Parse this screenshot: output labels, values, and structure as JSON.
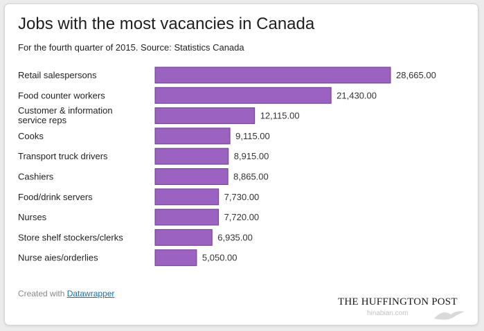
{
  "chart_data": {
    "type": "bar",
    "orientation": "horizontal",
    "title": "Jobs with the most vacancies in Canada",
    "subtitle": "For the fourth quarter of 2015. Source: Statistics Canada",
    "categories": [
      "Retail salespersons",
      "Food counter workers",
      "Customer & information service reps",
      "Cooks",
      "Transport truck drivers",
      "Cashiers",
      "Food/drink servers",
      "Nurses",
      "Store shelf stockers/clerks",
      "Nurse aies/orderlies"
    ],
    "category_label_lines": [
      [
        "Retail salespersons"
      ],
      [
        "Food counter workers"
      ],
      [
        "Customer & information",
        "service reps"
      ],
      [
        "Cooks"
      ],
      [
        "Transport truck drivers"
      ],
      [
        "Cashiers"
      ],
      [
        "Food/drink servers"
      ],
      [
        "Nurses"
      ],
      [
        "Store shelf stockers/clerks"
      ],
      [
        "Nurse aies/orderlies"
      ]
    ],
    "values": [
      28665,
      21430,
      12115,
      9115,
      8915,
      8865,
      7730,
      7720,
      6935,
      5050
    ],
    "value_labels": [
      "28,665.00",
      "21,430.00",
      "12,115.00",
      "9,115.00",
      "8,915.00",
      "8,865.00",
      "7,730.00",
      "7,720.00",
      "6,935.00",
      "5,050.00"
    ],
    "xlim": [
      0,
      28665
    ],
    "grid": false,
    "legend": "none",
    "bar_color": "#9b62c2",
    "bar_border_color": "#6b3f8c"
  },
  "footer": {
    "created_with": "Created with ",
    "link_label": "Datawrapper"
  },
  "branding": {
    "publisher": "THE HUFFINGTON POST",
    "watermark_text": "hinabian.com",
    "watermark_icon": "bird-logo-icon"
  }
}
